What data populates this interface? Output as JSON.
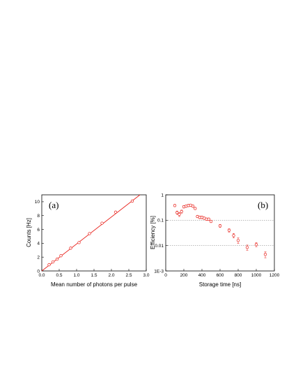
{
  "chart_data": [
    {
      "type": "scatter",
      "panel_label": "(a)",
      "xlabel": "Mean number of photons per pulse",
      "ylabel": "Counts [Hz]",
      "xlim": [
        0.0,
        3.0
      ],
      "ylim": [
        0,
        11
      ],
      "x_ticks": [
        "0.0",
        "0.5",
        "1.0",
        "1.5",
        "2.0",
        "2.5",
        "3.0"
      ],
      "x_tick_values": [
        0.0,
        0.5,
        1.0,
        1.5,
        2.0,
        2.5,
        3.0
      ],
      "y_ticks": [
        "0",
        "2",
        "4",
        "6",
        "8",
        "10"
      ],
      "y_tick_values": [
        0,
        2,
        4,
        6,
        8,
        10
      ],
      "color": "#e8201a",
      "series": [
        {
          "style": "open-circle",
          "x": [
            0.21,
            0.32,
            0.44,
            0.55,
            0.83,
            1.07,
            1.37,
            1.73,
            2.12,
            2.6
          ],
          "y": [
            0.9,
            1.3,
            1.7,
            2.2,
            3.3,
            4.1,
            5.4,
            6.9,
            8.5,
            10.1
          ]
        }
      ],
      "fit_line": {
        "x": [
          0.0,
          2.82
        ],
        "y": [
          0.0,
          11.0
        ]
      }
    },
    {
      "type": "scatter",
      "panel_label": "(b)",
      "xlabel": "Storage time [ns]",
      "ylabel": "Efficiency [%]",
      "xlim": [
        0,
        1200
      ],
      "ylim": [
        0.001,
        1
      ],
      "y_scale": "log",
      "x_ticks": [
        "0",
        "200",
        "400",
        "600",
        "800",
        "1000",
        "1200"
      ],
      "x_tick_values": [
        0,
        200,
        400,
        600,
        800,
        1000,
        1200
      ],
      "y_ticks": [
        "1",
        "0.1",
        "0.01",
        "1E-3"
      ],
      "y_tick_values": [
        1,
        0.1,
        0.01,
        0.001
      ],
      "h_reference_lines": [
        0.1,
        0.01
      ],
      "color": "#e8201a",
      "series": [
        {
          "style": "open-circle-errorbars",
          "x": [
            100,
            125,
            150,
            175,
            200,
            225,
            250,
            275,
            300,
            325,
            350,
            375,
            400,
            425,
            450,
            475,
            500,
            600,
            700,
            750,
            800,
            900,
            1000,
            1100
          ],
          "y": [
            0.38,
            0.2,
            0.17,
            0.22,
            0.34,
            0.36,
            0.38,
            0.39,
            0.36,
            0.29,
            0.14,
            0.13,
            0.13,
            0.12,
            0.11,
            0.11,
            0.09,
            0.06,
            0.04,
            0.025,
            0.016,
            0.0085,
            0.011,
            0.0045
          ],
          "err": [
            0.04,
            0.03,
            0.03,
            0.03,
            0.04,
            0.04,
            0.04,
            0.04,
            0.04,
            0.03,
            0.015,
            0.015,
            0.015,
            0.012,
            0.012,
            0.012,
            0.01,
            0.008,
            0.006,
            0.005,
            0.004,
            0.002,
            0.002,
            0.0012
          ]
        }
      ]
    }
  ]
}
